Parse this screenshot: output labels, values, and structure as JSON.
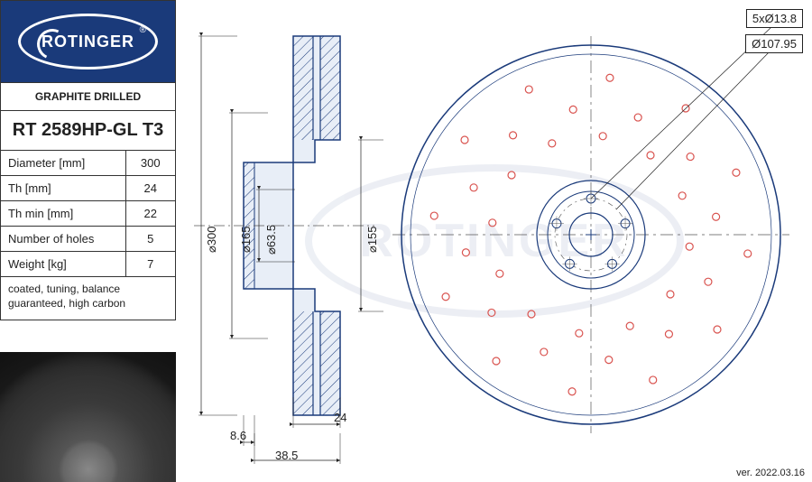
{
  "brand": "ROTINGER",
  "registered": "®",
  "subtitle": "GRAPHITE DRILLED",
  "part_number": "RT 2589HP-GL T3",
  "specs": [
    {
      "label": "Diameter [mm]",
      "value": "300"
    },
    {
      "label": "Th [mm]",
      "value": "24"
    },
    {
      "label": "Th min [mm]",
      "value": "22"
    },
    {
      "label": "Number of holes",
      "value": "5"
    },
    {
      "label": "Weight [kg]",
      "value": "7"
    }
  ],
  "notes": "coated, tuning,\nbalance guaranteed, high carbon",
  "version": "ver. 2022.03.16",
  "callouts": {
    "bolt_pattern": "5xØ13.8",
    "pitch_circle": "Ø107.95"
  },
  "side_view": {
    "dimensions": {
      "d_outer": "⌀300",
      "d_165": "⌀165",
      "d_63_5": "⌀63.5",
      "d_155": "⌀155",
      "offset_8_6": "8.6",
      "depth_38_5": "38.5",
      "thickness_24": "24"
    },
    "stroke": "#1a3a7a",
    "fill": "#e8eef7"
  },
  "front_view": {
    "outer_radius": 210,
    "inner_radius": 60,
    "hub_radius": 48,
    "bore_radius": 24,
    "bolt_circle_radius": 40,
    "bolt_hole_radius": 5,
    "bolt_count": 5,
    "drill_rings": [
      {
        "r": 175,
        "count": 12
      },
      {
        "r": 140,
        "count": 12
      },
      {
        "r": 110,
        "count": 12
      }
    ],
    "drill_radius": 4,
    "stroke": "#1a3a7a",
    "drill_stroke": "#d9534f",
    "center_line": "#555"
  },
  "colors": {
    "blueprint": "#1a3a7a",
    "text": "#222222",
    "background": "#ffffff"
  }
}
